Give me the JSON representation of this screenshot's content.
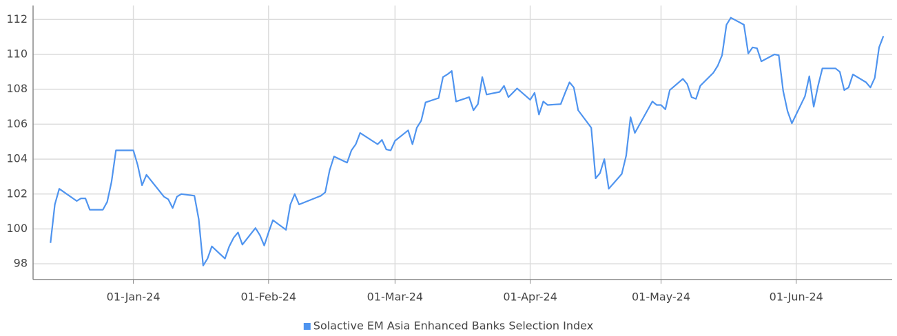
{
  "chart_data": {
    "type": "line",
    "x": [
      "2023-12-13",
      "2023-12-14",
      "2023-12-15",
      "2023-12-19",
      "2023-12-20",
      "2023-12-21",
      "2023-12-22",
      "2023-12-25",
      "2023-12-26",
      "2023-12-27",
      "2023-12-28",
      "2023-12-29",
      "2024-01-01",
      "2024-01-02",
      "2024-01-03",
      "2024-01-04",
      "2024-01-08",
      "2024-01-09",
      "2024-01-10",
      "2024-01-11",
      "2024-01-12",
      "2024-01-15",
      "2024-01-16",
      "2024-01-17",
      "2024-01-18",
      "2024-01-19",
      "2024-01-22",
      "2024-01-23",
      "2024-01-24",
      "2024-01-25",
      "2024-01-26",
      "2024-01-29",
      "2024-01-30",
      "2024-01-31",
      "2024-02-01",
      "2024-02-02",
      "2024-02-05",
      "2024-02-06",
      "2024-02-07",
      "2024-02-08",
      "2024-02-12",
      "2024-02-13",
      "2024-02-14",
      "2024-02-15",
      "2024-02-16",
      "2024-02-19",
      "2024-02-20",
      "2024-02-21",
      "2024-02-22",
      "2024-02-26",
      "2024-02-27",
      "2024-02-28",
      "2024-02-29",
      "2024-03-01",
      "2024-03-04",
      "2024-03-05",
      "2024-03-06",
      "2024-03-07",
      "2024-03-08",
      "2024-03-11",
      "2024-03-12",
      "2024-03-13",
      "2024-03-14",
      "2024-03-15",
      "2024-03-18",
      "2024-03-19",
      "2024-03-20",
      "2024-03-21",
      "2024-03-22",
      "2024-03-25",
      "2024-03-26",
      "2024-03-27",
      "2024-03-28",
      "2024-03-29",
      "2024-04-01",
      "2024-04-02",
      "2024-04-03",
      "2024-04-04",
      "2024-04-05",
      "2024-04-08",
      "2024-04-09",
      "2024-04-10",
      "2024-04-11",
      "2024-04-12",
      "2024-04-15",
      "2024-04-16",
      "2024-04-17",
      "2024-04-18",
      "2024-04-19",
      "2024-04-22",
      "2024-04-23",
      "2024-04-24",
      "2024-04-25",
      "2024-04-26",
      "2024-04-29",
      "2024-04-30",
      "2024-05-01",
      "2024-05-02",
      "2024-05-03",
      "2024-05-06",
      "2024-05-07",
      "2024-05-08",
      "2024-05-09",
      "2024-05-10",
      "2024-05-13",
      "2024-05-14",
      "2024-05-15",
      "2024-05-16",
      "2024-05-17",
      "2024-05-20",
      "2024-05-21",
      "2024-05-22",
      "2024-05-23",
      "2024-05-24",
      "2024-05-27",
      "2024-05-28",
      "2024-05-29",
      "2024-05-30",
      "2024-05-31",
      "2024-06-03",
      "2024-06-04",
      "2024-06-05",
      "2024-06-06",
      "2024-06-07",
      "2024-06-10",
      "2024-06-11",
      "2024-06-12",
      "2024-06-13",
      "2024-06-14",
      "2024-06-17",
      "2024-06-18",
      "2024-06-19",
      "2024-06-20",
      "2024-06-21"
    ],
    "series": [
      {
        "name": "Solactive EM Asia Enhanced Banks Selection Index",
        "color": "#4f94ef",
        "values": [
          99.2,
          101.4,
          102.3,
          101.6,
          101.75,
          101.75,
          101.1,
          101.1,
          101.55,
          102.7,
          104.5,
          104.5,
          104.5,
          103.65,
          102.5,
          103.1,
          101.85,
          101.7,
          101.2,
          101.85,
          102.0,
          101.9,
          100.55,
          97.9,
          98.3,
          99.0,
          98.3,
          99.0,
          99.5,
          99.8,
          99.1,
          100.05,
          99.65,
          99.05,
          99.8,
          100.5,
          99.95,
          101.4,
          102.0,
          101.4,
          101.8,
          101.9,
          102.1,
          103.35,
          104.15,
          103.8,
          104.5,
          104.85,
          105.5,
          104.85,
          105.1,
          104.55,
          104.5,
          105.05,
          105.65,
          104.85,
          105.8,
          106.2,
          107.25,
          107.5,
          108.7,
          108.85,
          109.05,
          107.3,
          107.55,
          106.8,
          107.15,
          108.7,
          107.7,
          107.85,
          108.2,
          107.55,
          107.8,
          108.05,
          107.4,
          107.8,
          106.55,
          107.3,
          107.1,
          107.15,
          107.8,
          108.4,
          108.1,
          106.8,
          105.8,
          102.9,
          103.2,
          104.0,
          102.3,
          103.15,
          104.2,
          106.4,
          105.5,
          105.95,
          107.3,
          107.1,
          107.1,
          106.85,
          107.95,
          108.6,
          108.3,
          107.55,
          107.45,
          108.2,
          108.95,
          109.35,
          109.95,
          111.7,
          112.1,
          111.7,
          110.05,
          110.4,
          110.35,
          109.6,
          110.0,
          109.95,
          107.9,
          106.75,
          106.05,
          107.6,
          108.75,
          107.0,
          108.2,
          109.2,
          109.2,
          109.0,
          107.95,
          108.1,
          108.85,
          108.4,
          108.1,
          108.65,
          110.4,
          111.05
        ]
      }
    ],
    "xlim": [
      "2023-12-09",
      "2024-06-23"
    ],
    "xticks": [
      {
        "value": "2024-01-01",
        "label": "01-Jan-24"
      },
      {
        "value": "2024-02-01",
        "label": "01-Feb-24"
      },
      {
        "value": "2024-03-01",
        "label": "01-Mar-24"
      },
      {
        "value": "2024-04-01",
        "label": "01-Apr-24"
      },
      {
        "value": "2024-05-01",
        "label": "01-May-24"
      },
      {
        "value": "2024-06-01",
        "label": "01-Jun-24"
      }
    ],
    "ylim": [
      97.1,
      112.8
    ],
    "yticks": [
      98,
      100,
      102,
      104,
      106,
      108,
      110,
      112
    ],
    "grid": true,
    "legend": "bottom"
  }
}
